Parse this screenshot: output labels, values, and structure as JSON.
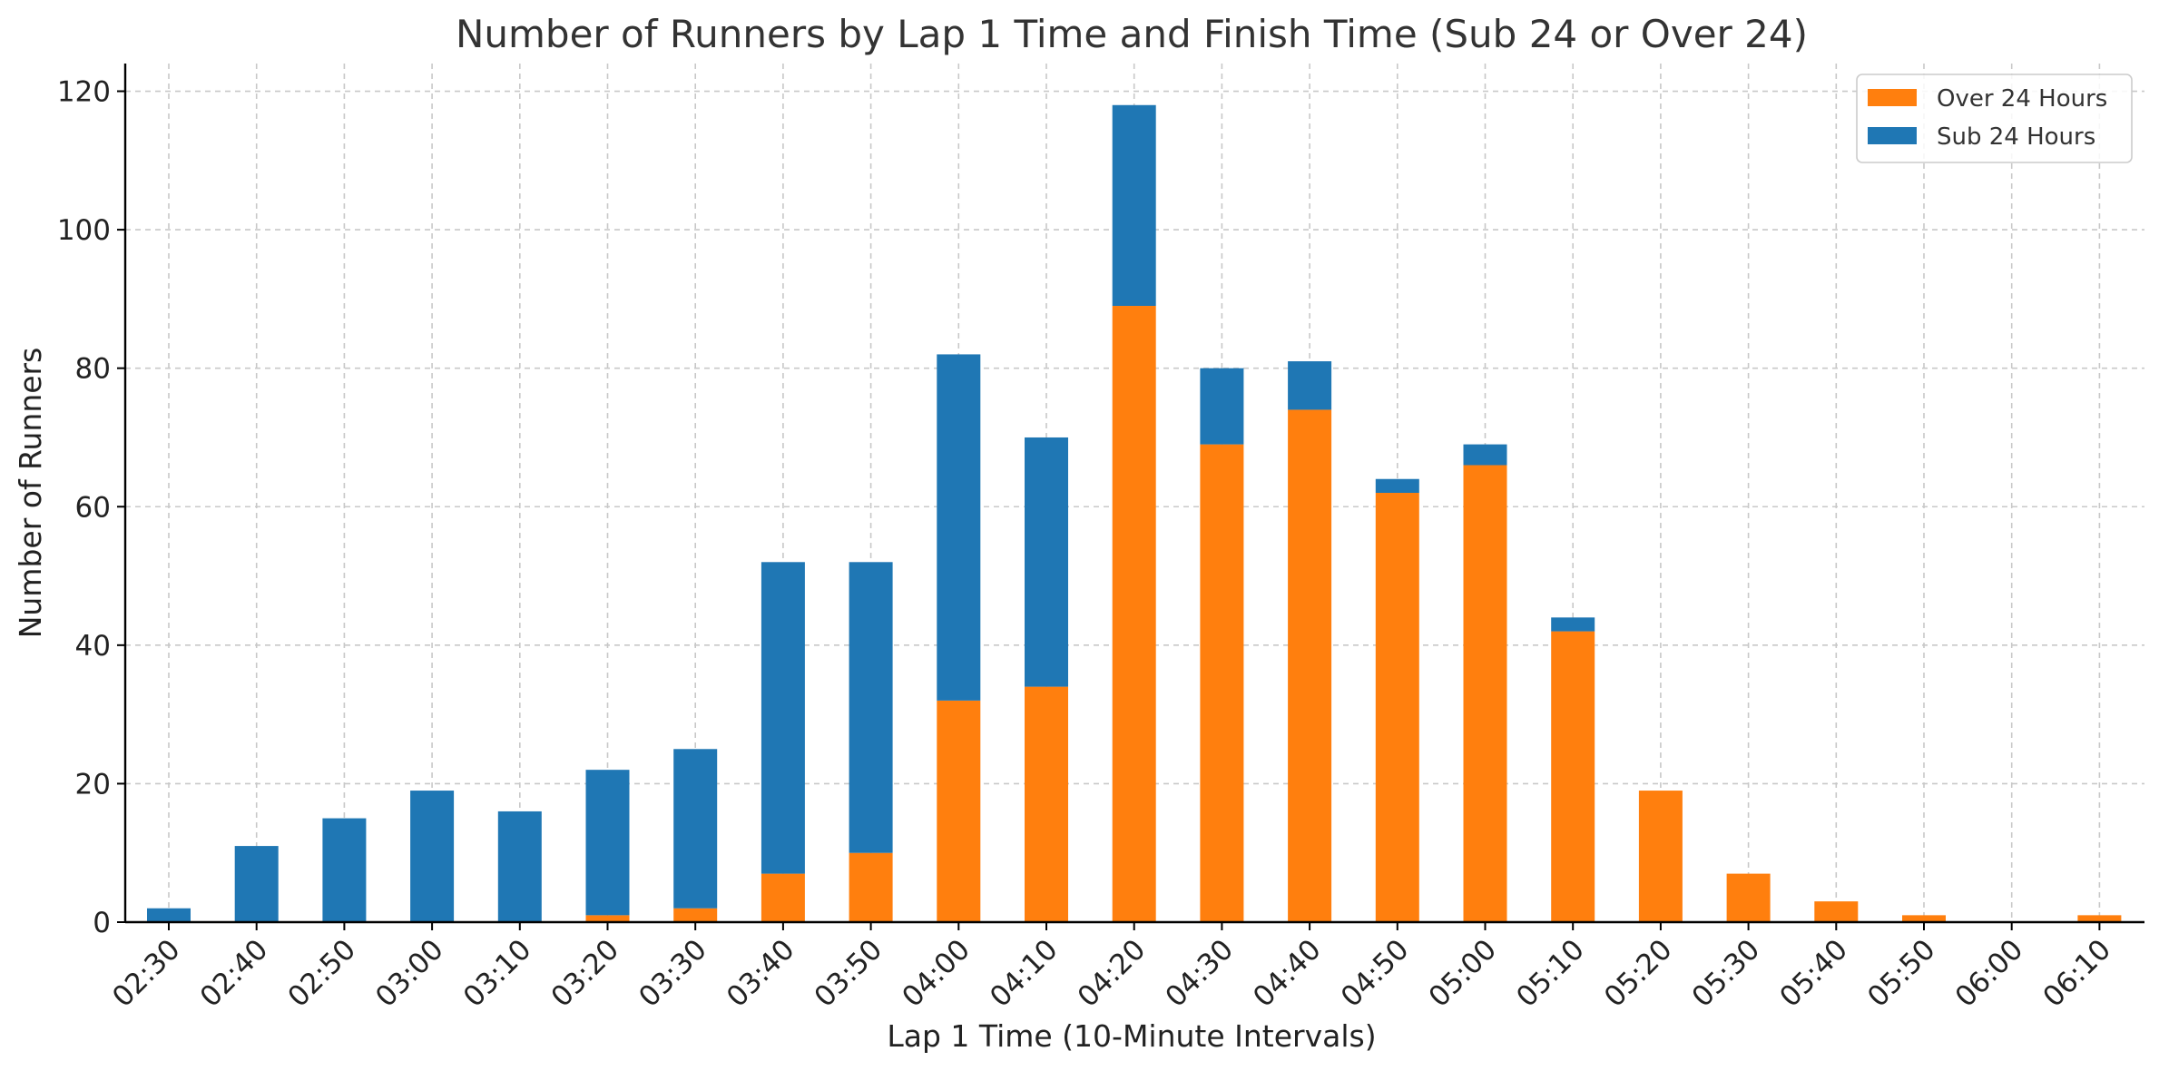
{
  "chart_data": {
    "type": "bar",
    "stacked": true,
    "title": "Number of Runners by Lap 1 Time and Finish Time (Sub 24 or Over 24)",
    "xlabel": "Lap 1 Time (10-Minute Intervals)",
    "ylabel": "Number of Runners",
    "ylim": [
      0,
      124
    ],
    "yticks": [
      0,
      20,
      40,
      60,
      80,
      100,
      120
    ],
    "grid": true,
    "legend_position": "top-right",
    "categories": [
      "02:30",
      "02:40",
      "02:50",
      "03:00",
      "03:10",
      "03:20",
      "03:30",
      "03:40",
      "03:50",
      "04:00",
      "04:10",
      "04:20",
      "04:30",
      "04:40",
      "04:50",
      "05:00",
      "05:10",
      "05:20",
      "05:30",
      "05:40",
      "05:50",
      "06:00",
      "06:10"
    ],
    "series": [
      {
        "name": "Over 24 Hours",
        "color": "#ff7f0e",
        "values": [
          0,
          0,
          0,
          0,
          0,
          1,
          2,
          7,
          10,
          32,
          34,
          89,
          69,
          74,
          62,
          66,
          42,
          19,
          7,
          3,
          1,
          0,
          1
        ]
      },
      {
        "name": "Sub 24 Hours",
        "color": "#1f77b4",
        "values": [
          2,
          11,
          15,
          19,
          16,
          21,
          23,
          45,
          42,
          50,
          36,
          29,
          11,
          7,
          2,
          3,
          2,
          0,
          0,
          0,
          0,
          0,
          0
        ]
      }
    ]
  }
}
